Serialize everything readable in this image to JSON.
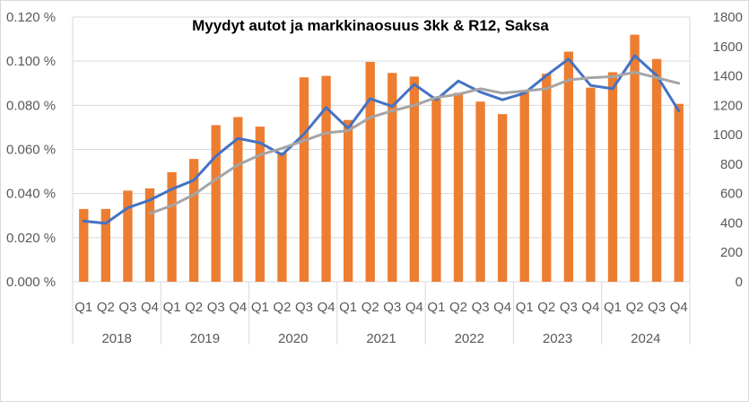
{
  "chart_data": {
    "type": "bar",
    "title": "Myydyt autot ja markkinaosuus 3kk & R12, Saksa",
    "xlabel": "",
    "categories": [
      "Q1",
      "Q2",
      "Q3",
      "Q4",
      "Q1",
      "Q2",
      "Q3",
      "Q4",
      "Q1",
      "Q2",
      "Q3",
      "Q4",
      "Q1",
      "Q2",
      "Q3",
      "Q4",
      "Q1",
      "Q2",
      "Q3",
      "Q4",
      "Q1",
      "Q2",
      "Q3",
      "Q4",
      "Q1",
      "Q2",
      "Q3",
      "Q4"
    ],
    "years": [
      "2018",
      "2019",
      "2020",
      "2021",
      "2022",
      "2023",
      "2024"
    ],
    "y_left_ticks": [
      "0.000 %",
      "0.020 %",
      "0.040 %",
      "0.060 %",
      "0.080 %",
      "0.100 %",
      "0.120 %"
    ],
    "y_right_ticks": [
      "0",
      "200",
      "400",
      "600",
      "800",
      "1000",
      "1200",
      "1400",
      "1600",
      "1800"
    ],
    "ylim_left": [
      0,
      0.12
    ],
    "ylim_right": [
      0,
      1800
    ],
    "grid": true,
    "legend": "none",
    "series": [
      {
        "axis": "right",
        "kind": "bar",
        "color": "#ed7d31",
        "values": [
          495,
          495,
          620,
          635,
          745,
          835,
          1065,
          1120,
          1055,
          880,
          1390,
          1400,
          1100,
          1495,
          1420,
          1395,
          1245,
          1285,
          1225,
          1140,
          1300,
          1415,
          1565,
          1320,
          1425,
          1680,
          1515,
          1210
        ]
      },
      {
        "axis": "left",
        "kind": "line",
        "color": "#4472c4",
        "values": [
          0.0275,
          0.0265,
          0.0335,
          0.037,
          0.042,
          0.046,
          0.057,
          0.065,
          0.063,
          0.0575,
          0.067,
          0.079,
          0.0695,
          0.083,
          0.0795,
          0.0895,
          0.0825,
          0.091,
          0.086,
          0.0825,
          0.0855,
          0.0935,
          0.101,
          0.089,
          0.0875,
          0.1025,
          0.0935,
          0.0775
        ]
      },
      {
        "axis": "left",
        "kind": "line",
        "color": "#a5a5a5",
        "values": [
          null,
          null,
          null,
          0.031,
          0.0345,
          0.0395,
          0.0465,
          0.053,
          0.0575,
          0.0605,
          0.064,
          0.0675,
          0.0685,
          0.0745,
          0.0775,
          0.08,
          0.0835,
          0.085,
          0.0875,
          0.0855,
          0.0865,
          0.0875,
          0.0915,
          0.0925,
          0.093,
          0.095,
          0.0925,
          0.09
        ]
      }
    ]
  }
}
